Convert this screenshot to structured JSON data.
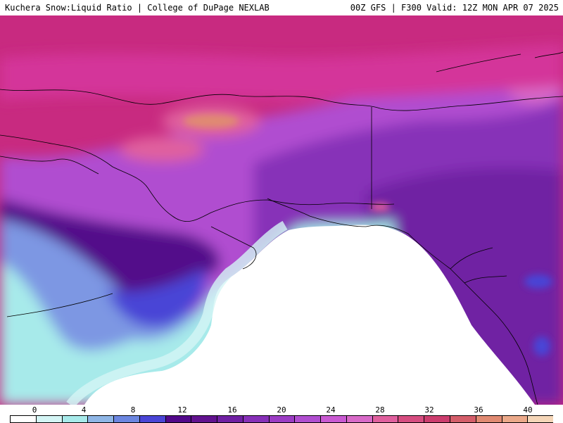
{
  "header": {
    "title_left": "Kuchera Snow:Liquid Ratio | College of DuPage NEXLAB",
    "title_right": "00Z GFS | F300 Valid: 12Z MON APR 07 2025"
  },
  "legend": {
    "tick_labels": [
      "0",
      "4",
      "8",
      "12",
      "16",
      "20",
      "24",
      "28",
      "32",
      "36",
      "40"
    ],
    "colors": [
      "#ffffff",
      "#d4f5f5",
      "#a7eaea",
      "#8fb6e6",
      "#6c86e0",
      "#4a45d6",
      "#52088a",
      "#62128f",
      "#7020a3",
      "#8730b8",
      "#9b3cc4",
      "#b04ed0",
      "#c95ad2",
      "#d86ac8",
      "#e0609e",
      "#d64d80",
      "#cc3d6e",
      "#d45e6a",
      "#e08a72",
      "#eba98a",
      "#f5d6b8"
    ]
  },
  "map": {
    "field": "Snow:Liquid Ratio",
    "region": "Alaska",
    "colors": {
      "ocean": "#ffffff",
      "low_cyan": "#a7eaea",
      "light_cyan": "#d4f5f5",
      "blue": "#7d97e3",
      "indigo": "#4a45d6",
      "deep_purple": "#52088a",
      "purple": "#8730b8",
      "violet": "#b04ed0",
      "magenta": "#d4369a",
      "pink": "#e0609e",
      "salmon": "#e08a72",
      "coastline": "#000000"
    }
  }
}
